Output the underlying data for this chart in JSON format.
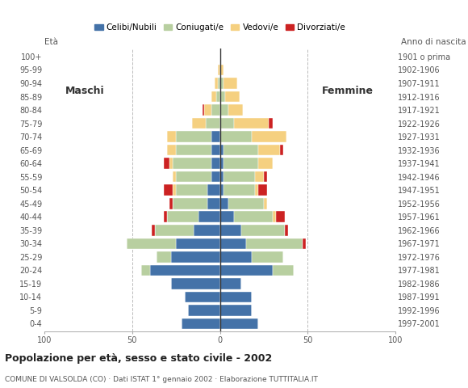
{
  "age_groups": [
    "0-4",
    "5-9",
    "10-14",
    "15-19",
    "20-24",
    "25-29",
    "30-34",
    "35-39",
    "40-44",
    "45-49",
    "50-54",
    "55-59",
    "60-64",
    "65-69",
    "70-74",
    "75-79",
    "80-84",
    "85-89",
    "90-94",
    "95-99",
    "100+"
  ],
  "birth_years": [
    "1997-2001",
    "1992-1996",
    "1987-1991",
    "1982-1986",
    "1977-1981",
    "1972-1976",
    "1967-1971",
    "1962-1966",
    "1957-1961",
    "1952-1956",
    "1947-1951",
    "1942-1946",
    "1937-1941",
    "1932-1936",
    "1927-1931",
    "1922-1926",
    "1917-1921",
    "1912-1916",
    "1907-1911",
    "1902-1906",
    "1901 o prima"
  ],
  "m_celibi": [
    22,
    18,
    20,
    28,
    40,
    28,
    25,
    15,
    12,
    7,
    7,
    5,
    5,
    5,
    5,
    0,
    0,
    0,
    0,
    0,
    0
  ],
  "m_coniugati": [
    0,
    0,
    0,
    0,
    5,
    8,
    28,
    22,
    18,
    20,
    18,
    20,
    22,
    20,
    20,
    8,
    5,
    2,
    1,
    0,
    0
  ],
  "m_vedovi": [
    0,
    0,
    0,
    0,
    0,
    0,
    0,
    0,
    0,
    0,
    2,
    2,
    2,
    5,
    5,
    8,
    4,
    3,
    2,
    1,
    0
  ],
  "m_divorziati": [
    0,
    0,
    0,
    0,
    0,
    0,
    0,
    2,
    2,
    2,
    5,
    0,
    3,
    0,
    0,
    0,
    1,
    0,
    0,
    0,
    0
  ],
  "f_nubili": [
    22,
    18,
    18,
    12,
    30,
    18,
    15,
    12,
    8,
    5,
    2,
    2,
    2,
    2,
    0,
    0,
    0,
    0,
    0,
    0,
    0
  ],
  "f_coniugate": [
    0,
    0,
    0,
    0,
    12,
    18,
    32,
    25,
    22,
    20,
    18,
    18,
    20,
    20,
    18,
    8,
    5,
    3,
    2,
    0,
    0
  ],
  "f_vedove": [
    0,
    0,
    0,
    0,
    0,
    0,
    0,
    0,
    2,
    2,
    2,
    5,
    8,
    12,
    20,
    20,
    8,
    8,
    8,
    2,
    0
  ],
  "f_divorziate": [
    0,
    0,
    0,
    0,
    0,
    0,
    2,
    2,
    5,
    0,
    5,
    2,
    0,
    2,
    0,
    2,
    0,
    0,
    0,
    0,
    0
  ],
  "colors": {
    "celibi": "#4472a8",
    "coniugati": "#b8cfa0",
    "vedovi": "#f5d080",
    "divorziati": "#cc2222"
  },
  "title": "Popolazione per età, sesso e stato civile - 2002",
  "subtitle": "COMUNE DI VALSOLDA (CO) · Dati ISTAT 1° gennaio 2002 · Elaborazione TUTTITALIA.IT",
  "legend_labels": [
    "Celibi/Nubili",
    "Coniugati/e",
    "Vedovi/e",
    "Divorziati/e"
  ],
  "eta_label": "Età",
  "anno_label": "Anno di nascita",
  "maschi_label": "Maschi",
  "femmine_label": "Femmine"
}
